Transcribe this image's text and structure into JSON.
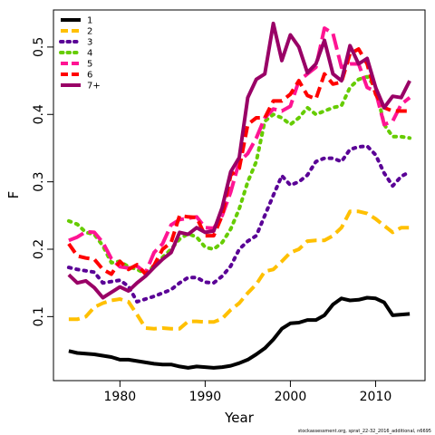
{
  "chart_data": {
    "type": "line",
    "xlabel": "Year",
    "ylabel": "F",
    "xlim": [
      1972.2,
      2015.8
    ],
    "ylim": [
      0.005,
      0.555
    ],
    "xticks": [
      1980,
      1990,
      2000,
      2010
    ],
    "yticks": [
      0.1,
      0.2,
      0.3,
      0.4,
      0.5
    ],
    "legend_position": "top-left",
    "footnote": "stockassessment.org, sprat_22-32_2016_additional, n6695",
    "x": [
      1974,
      1975,
      1976,
      1977,
      1978,
      1979,
      1980,
      1981,
      1982,
      1983,
      1984,
      1985,
      1986,
      1987,
      1988,
      1989,
      1990,
      1991,
      1992,
      1993,
      1994,
      1995,
      1996,
      1997,
      1998,
      1999,
      2000,
      2001,
      2002,
      2003,
      2004,
      2005,
      2006,
      2007,
      2008,
      2009,
      2010,
      2011,
      2012,
      2013,
      2014
    ],
    "series": [
      {
        "name": "1",
        "color": "#000000",
        "dash": "solid",
        "values": [
          0.049,
          0.046,
          0.045,
          0.044,
          0.042,
          0.04,
          0.036,
          0.036,
          0.034,
          0.032,
          0.03,
          0.029,
          0.029,
          0.026,
          0.024,
          0.026,
          0.025,
          0.024,
          0.025,
          0.027,
          0.031,
          0.036,
          0.044,
          0.053,
          0.066,
          0.082,
          0.09,
          0.091,
          0.095,
          0.095,
          0.102,
          0.118,
          0.127,
          0.124,
          0.125,
          0.128,
          0.127,
          0.121,
          0.102,
          0.103,
          0.104
        ]
      },
      {
        "name": "2",
        "color": "#FFC000",
        "dash": "dash",
        "values": [
          0.096,
          0.096,
          0.1,
          0.114,
          0.12,
          0.124,
          0.126,
          0.122,
          0.103,
          0.083,
          0.082,
          0.083,
          0.082,
          0.082,
          0.093,
          0.093,
          0.092,
          0.092,
          0.097,
          0.11,
          0.12,
          0.135,
          0.148,
          0.167,
          0.17,
          0.182,
          0.195,
          0.2,
          0.212,
          0.213,
          0.213,
          0.22,
          0.232,
          0.256,
          0.256,
          0.253,
          0.245,
          0.235,
          0.225,
          0.232,
          0.232
        ]
      },
      {
        "name": "3",
        "color": "#5A0096",
        "dash": "dot",
        "values": [
          0.173,
          0.17,
          0.168,
          0.166,
          0.15,
          0.152,
          0.154,
          0.145,
          0.122,
          0.126,
          0.13,
          0.135,
          0.14,
          0.15,
          0.158,
          0.158,
          0.151,
          0.15,
          0.16,
          0.175,
          0.2,
          0.212,
          0.22,
          0.25,
          0.28,
          0.309,
          0.295,
          0.3,
          0.31,
          0.33,
          0.335,
          0.335,
          0.33,
          0.348,
          0.352,
          0.353,
          0.34,
          0.313,
          0.294,
          0.308,
          0.315
        ]
      },
      {
        "name": "4",
        "color": "#66CC00",
        "dash": "dot",
        "values": [
          0.242,
          0.237,
          0.225,
          0.222,
          0.205,
          0.18,
          0.182,
          0.174,
          0.17,
          0.164,
          0.175,
          0.188,
          0.2,
          0.215,
          0.223,
          0.218,
          0.203,
          0.2,
          0.21,
          0.23,
          0.26,
          0.3,
          0.33,
          0.39,
          0.4,
          0.395,
          0.385,
          0.395,
          0.41,
          0.4,
          0.405,
          0.41,
          0.413,
          0.44,
          0.452,
          0.456,
          0.44,
          0.385,
          0.367,
          0.367,
          0.365
        ]
      },
      {
        "name": "5",
        "color": "#FF1493",
        "dash": "longdash",
        "values": [
          0.213,
          0.218,
          0.226,
          0.225,
          0.21,
          0.186,
          0.174,
          0.172,
          0.175,
          0.165,
          0.195,
          0.208,
          0.236,
          0.244,
          0.246,
          0.248,
          0.232,
          0.231,
          0.25,
          0.285,
          0.33,
          0.342,
          0.365,
          0.395,
          0.408,
          0.405,
          0.412,
          0.45,
          0.46,
          0.47,
          0.528,
          0.52,
          0.47,
          0.475,
          0.475,
          0.44,
          0.434,
          0.385,
          0.39,
          0.415,
          0.425
        ]
      },
      {
        "name": "6",
        "color": "#FF0000",
        "dash": "dash",
        "values": [
          0.208,
          0.19,
          0.187,
          0.185,
          0.17,
          0.163,
          0.182,
          0.17,
          0.177,
          0.163,
          0.176,
          0.2,
          0.21,
          0.25,
          0.248,
          0.247,
          0.22,
          0.22,
          0.25,
          0.31,
          0.32,
          0.385,
          0.395,
          0.395,
          0.42,
          0.42,
          0.43,
          0.45,
          0.428,
          0.423,
          0.46,
          0.445,
          0.448,
          0.49,
          0.497,
          0.475,
          0.43,
          0.41,
          0.405,
          0.405,
          0.405
        ]
      },
      {
        "name": "7+",
        "color": "#990066",
        "dash": "solid",
        "values": [
          0.162,
          0.15,
          0.153,
          0.143,
          0.128,
          0.136,
          0.144,
          0.138,
          0.15,
          0.16,
          0.173,
          0.185,
          0.195,
          0.225,
          0.222,
          0.232,
          0.225,
          0.227,
          0.262,
          0.315,
          0.336,
          0.425,
          0.452,
          0.46,
          0.535,
          0.48,
          0.518,
          0.5,
          0.462,
          0.475,
          0.51,
          0.46,
          0.45,
          0.502,
          0.475,
          0.483,
          0.44,
          0.41,
          0.427,
          0.425,
          0.45
        ]
      }
    ]
  }
}
